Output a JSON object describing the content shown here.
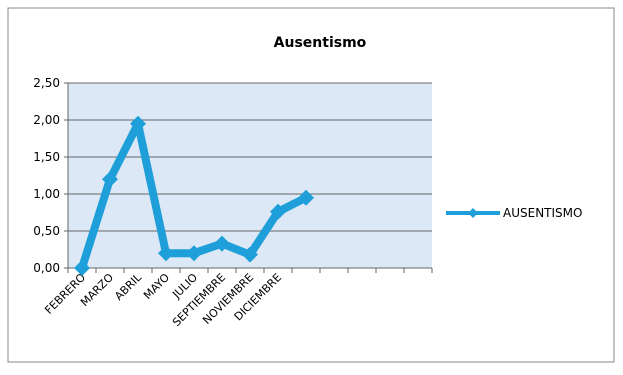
{
  "chart_data": {
    "type": "line",
    "title": "Ausentismo",
    "categories": [
      "FEBRERO",
      "MARZO",
      "ABRIL",
      "MAYO",
      "JULIO",
      "SEPTIEMBRE",
      "NOVIEMBRE",
      "DICIEMBRE",
      null,
      null,
      null,
      null,
      null
    ],
    "series": [
      {
        "name": "AUSENTISMO",
        "color": "#1e9fd9",
        "values": [
          0,
          1.2,
          1.95,
          0.2,
          0.2,
          0.33,
          0.18,
          0.76,
          0.95,
          null,
          null,
          null,
          null
        ]
      }
    ],
    "ylim": [
      0,
      2.5
    ],
    "yticks": [
      {
        "value": 0,
        "label": "0,00"
      },
      {
        "value": 0.5,
        "label": "0,50"
      },
      {
        "value": 1,
        "label": "1,00"
      },
      {
        "value": 1.5,
        "label": "1,50"
      },
      {
        "value": 2,
        "label": "2,00"
      },
      {
        "value": 2.5,
        "label": "2,50"
      }
    ],
    "grid": true,
    "legend": "right"
  }
}
